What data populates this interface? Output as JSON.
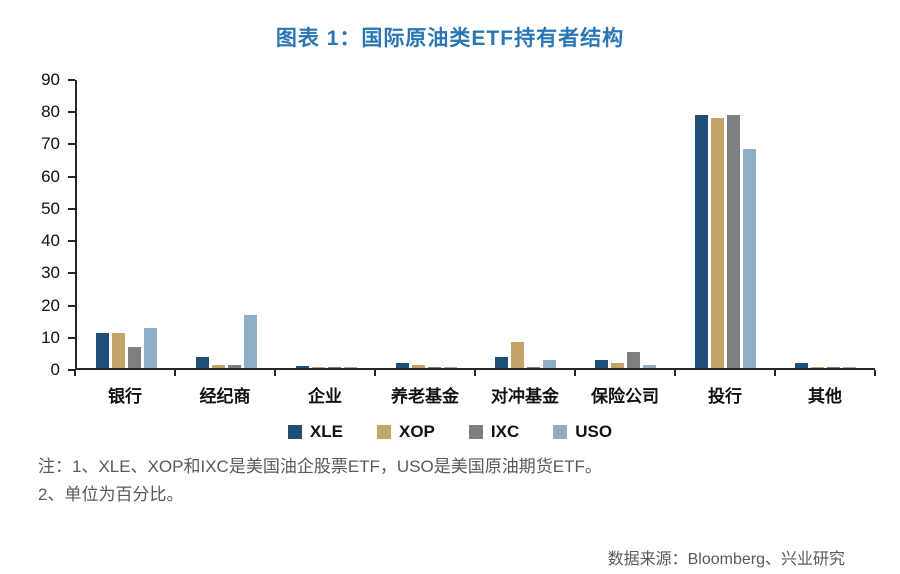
{
  "title": "图表 1：国际原油类ETF持有者结构",
  "notes": {
    "line1": "注：1、XLE、XOP和IXC是美国油企股票ETF，USO是美国原油期货ETF。",
    "line2": "2、单位为百分比。"
  },
  "source": "数据来源：Bloomberg、兴业研究",
  "colors": {
    "title": "#2A76B5",
    "axis": "#262626",
    "note_text": "#595959",
    "xle": "#1F4E79",
    "xop": "#C3A36A",
    "ixc": "#7F7F7F",
    "uso": "#8EAFC8"
  },
  "chart_data": {
    "type": "bar",
    "title": "图表 1：国际原油类ETF持有者结构",
    "categories": [
      "银行",
      "经纪商",
      "企业",
      "养老基金",
      "对冲基金",
      "保险公司",
      "投行",
      "其他"
    ],
    "series": [
      {
        "name": "XLE",
        "color": "#1F4E79",
        "values": [
          11,
          3.5,
          0.5,
          1.5,
          3.5,
          2.5,
          79,
          1.5
        ]
      },
      {
        "name": "XOP",
        "color": "#C3A36A",
        "values": [
          11,
          1,
          0.4,
          1,
          8,
          1.5,
          78,
          0.4
        ]
      },
      {
        "name": "IXC",
        "color": "#7F7F7F",
        "values": [
          6.5,
          1,
          0.4,
          0.3,
          0.4,
          5,
          79,
          0.3
        ]
      },
      {
        "name": "USO",
        "color": "#8EAFC8",
        "values": [
          12.5,
          16.5,
          0.4,
          0.3,
          2.5,
          0.8,
          68.5,
          0.4
        ]
      }
    ],
    "xlabel": "",
    "ylabel": "",
    "ylim": [
      0,
      90
    ],
    "yticks": [
      0,
      10,
      20,
      30,
      40,
      50,
      60,
      70,
      80,
      90
    ],
    "grid": false,
    "legend_position": "bottom",
    "unit": "percent"
  }
}
